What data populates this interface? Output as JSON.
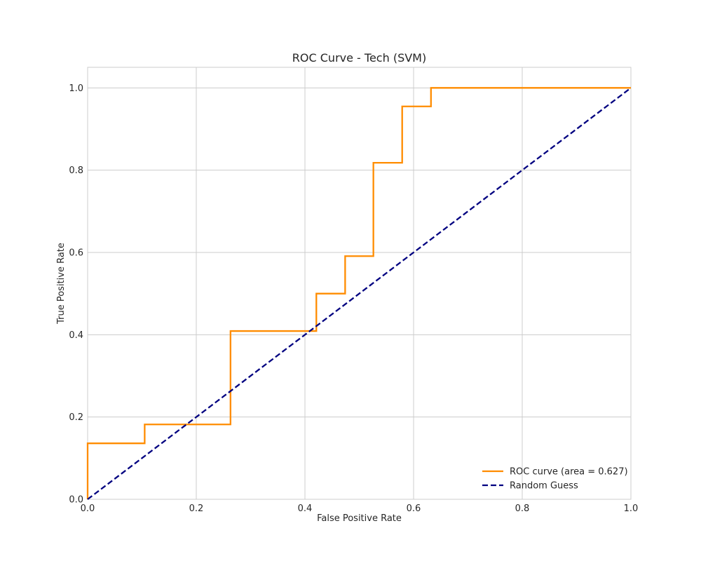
{
  "chart_data": {
    "type": "line",
    "title": "ROC Curve - Tech (SVM)",
    "xlabel": "False Positive Rate",
    "ylabel": "True Positive Rate",
    "xlim": [
      0.0,
      1.0
    ],
    "ylim": [
      0.0,
      1.05
    ],
    "x_ticks": [
      "0.0",
      "0.2",
      "0.4",
      "0.6",
      "0.8",
      "1.0"
    ],
    "y_ticks": [
      "0.0",
      "0.2",
      "0.4",
      "0.6",
      "0.8",
      "1.0"
    ],
    "grid": true,
    "legend_position": "lower-right",
    "series": [
      {
        "name": "ROC curve (area = 0.627)",
        "color": "#ff8c00",
        "style": "solid",
        "x": [
          0.0,
          0.0,
          0.105,
          0.105,
          0.263,
          0.263,
          0.421,
          0.421,
          0.474,
          0.474,
          0.526,
          0.526,
          0.579,
          0.579,
          0.632,
          0.632,
          1.0
        ],
        "y": [
          0.0,
          0.136,
          0.136,
          0.182,
          0.182,
          0.409,
          0.409,
          0.5,
          0.5,
          0.591,
          0.591,
          0.818,
          0.818,
          0.955,
          0.955,
          1.0,
          1.0
        ]
      },
      {
        "name": "Random Guess",
        "color": "#000080",
        "style": "dashed",
        "x": [
          0.0,
          1.0
        ],
        "y": [
          0.0,
          1.0
        ]
      }
    ]
  }
}
